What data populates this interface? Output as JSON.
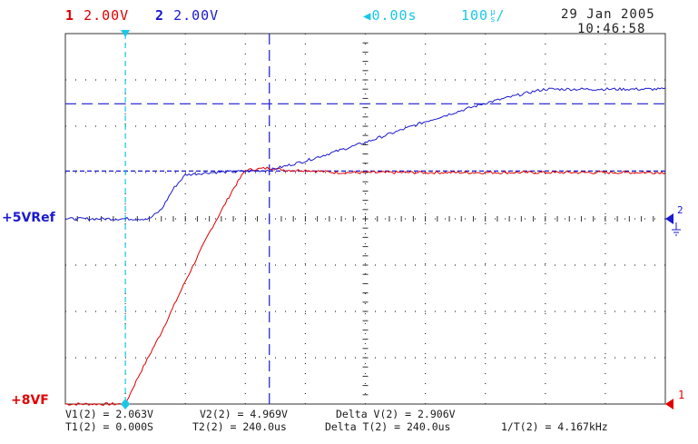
{
  "header": {
    "ch1_number": "1",
    "ch1_scale": "2.00V",
    "ch2_number": "2",
    "ch2_scale": "2.00V",
    "trigger_position": "0.00s",
    "timebase_value": "100",
    "timebase_unit_top": "μ",
    "timebase_unit_bottom": "s",
    "timebase_slash": "/",
    "date": "29 Jan 2005",
    "time": "10:46:58"
  },
  "labels": {
    "ref_label": "+5VRef",
    "vf_label": "+8VF",
    "ch2_marker": "2",
    "ch1_marker": "1"
  },
  "measurements": {
    "v1": "V1(2) = 2.063V",
    "v2": "V2(2) = 4.969V",
    "delta_v": "Delta V(2) = 2.906V",
    "t1": "T1(2) = 0.000S",
    "t2": "T2(2) = 240.0us",
    "delta_t": "Delta T(2) = 240.0us",
    "freq": "1/T(2) = 4.167kHz"
  },
  "colors": {
    "ch1": "#e00000",
    "ch2": "#1a1ad0",
    "cursor": "#1a1ad0",
    "trigger": "#19c8e6",
    "grid": "#333333"
  },
  "chart_data": {
    "type": "line",
    "title": "",
    "xlabel": "",
    "ylabel": "",
    "x_unit": "us",
    "xlim": [
      -100,
      900
    ],
    "ylim": [
      -8,
      8
    ],
    "grid": true,
    "divisions": {
      "x": 10,
      "y": 8
    },
    "series": [
      {
        "name": "+8VF",
        "channel": 1,
        "color": "#e00000",
        "ref_level_v": -8,
        "x": [
          -100,
          -60,
          -20,
          0,
          20,
          60,
          100,
          140,
          180,
          200,
          240,
          270,
          300,
          350,
          400,
          500,
          600,
          700,
          800,
          900
        ],
        "y": [
          -8.0,
          -8.0,
          -8.0,
          -8.0,
          -6.9,
          -4.9,
          -2.7,
          -0.6,
          1.3,
          2.1,
          2.2,
          2.1,
          2.1,
          2.0,
          2.0,
          2.0,
          2.0,
          2.0,
          2.0,
          2.0
        ]
      },
      {
        "name": "+5VRef",
        "channel": 2,
        "color": "#1a1ad0",
        "ref_level_v": 0,
        "x": [
          -100,
          -60,
          -20,
          0,
          40,
          60,
          80,
          100,
          140,
          200,
          240,
          300,
          400,
          500,
          600,
          680,
          700,
          750,
          800,
          900
        ],
        "y": [
          0.0,
          0.0,
          0.0,
          0.0,
          0.0,
          0.4,
          1.3,
          1.9,
          2.0,
          2.05,
          2.1,
          2.5,
          3.3,
          4.2,
          5.0,
          5.5,
          5.6,
          5.6,
          5.6,
          5.6
        ]
      }
    ],
    "cursors": {
      "horizontal_v": [
        2.063,
        4.969
      ],
      "vertical_us": [
        0,
        240
      ]
    }
  }
}
